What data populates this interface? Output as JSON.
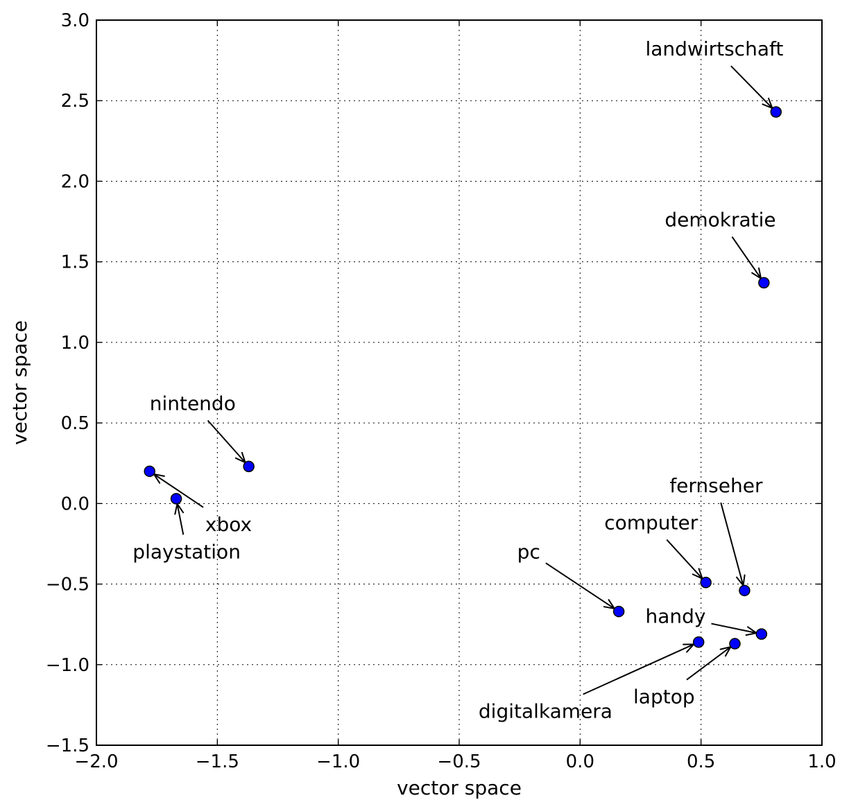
{
  "chart_data": {
    "type": "scatter",
    "title": "",
    "xlabel": "vector space",
    "ylabel": "vector space",
    "xlim": [
      -2.0,
      1.0
    ],
    "ylim": [
      -1.5,
      3.0
    ],
    "grid": true,
    "marker_color": "#0000ff",
    "xticks": [
      -2.0,
      -1.5,
      -1.0,
      -0.5,
      0.0,
      0.5,
      1.0
    ],
    "xtick_labels": [
      "−2.0",
      "−1.5",
      "−1.0",
      "−0.5",
      "0.0",
      "0.5",
      "1.0"
    ],
    "yticks": [
      -1.5,
      -1.0,
      -0.5,
      0.0,
      0.5,
      1.0,
      1.5,
      2.0,
      2.5,
      3.0
    ],
    "ytick_labels": [
      "−1.5",
      "−1.0",
      "−0.5",
      "0.0",
      "0.5",
      "1.0",
      "1.5",
      "2.0",
      "2.5",
      "3.0"
    ],
    "points": [
      {
        "label": "landwirtschaft",
        "x": 0.81,
        "y": 2.43,
        "text_x": 0.27,
        "text_y": 2.78
      },
      {
        "label": "demokratie",
        "x": 0.76,
        "y": 1.37,
        "text_x": 0.35,
        "text_y": 1.72
      },
      {
        "label": "nintendo",
        "x": -1.37,
        "y": 0.23,
        "text_x": -1.78,
        "text_y": 0.58
      },
      {
        "label": "xbox",
        "x": -1.78,
        "y": 0.2,
        "text_x": -1.55,
        "text_y": -0.17
      },
      {
        "label": "playstation",
        "x": -1.67,
        "y": 0.03,
        "text_x": -1.85,
        "text_y": -0.34
      },
      {
        "label": "fernseher",
        "x": 0.68,
        "y": -0.54,
        "text_x": 0.37,
        "text_y": 0.07
      },
      {
        "label": "computer",
        "x": 0.52,
        "y": -0.49,
        "text_x": 0.1,
        "text_y": -0.16
      },
      {
        "label": "pc",
        "x": 0.16,
        "y": -0.67,
        "text_x": -0.26,
        "text_y": -0.34
      },
      {
        "label": "handy",
        "x": 0.75,
        "y": -0.81,
        "text_x": 0.27,
        "text_y": -0.74
      },
      {
        "label": "digitalkamera",
        "x": 0.49,
        "y": -0.86,
        "text_x": -0.42,
        "text_y": -1.33
      },
      {
        "label": "laptop",
        "x": 0.64,
        "y": -0.87,
        "text_x": 0.22,
        "text_y": -1.24
      }
    ]
  }
}
